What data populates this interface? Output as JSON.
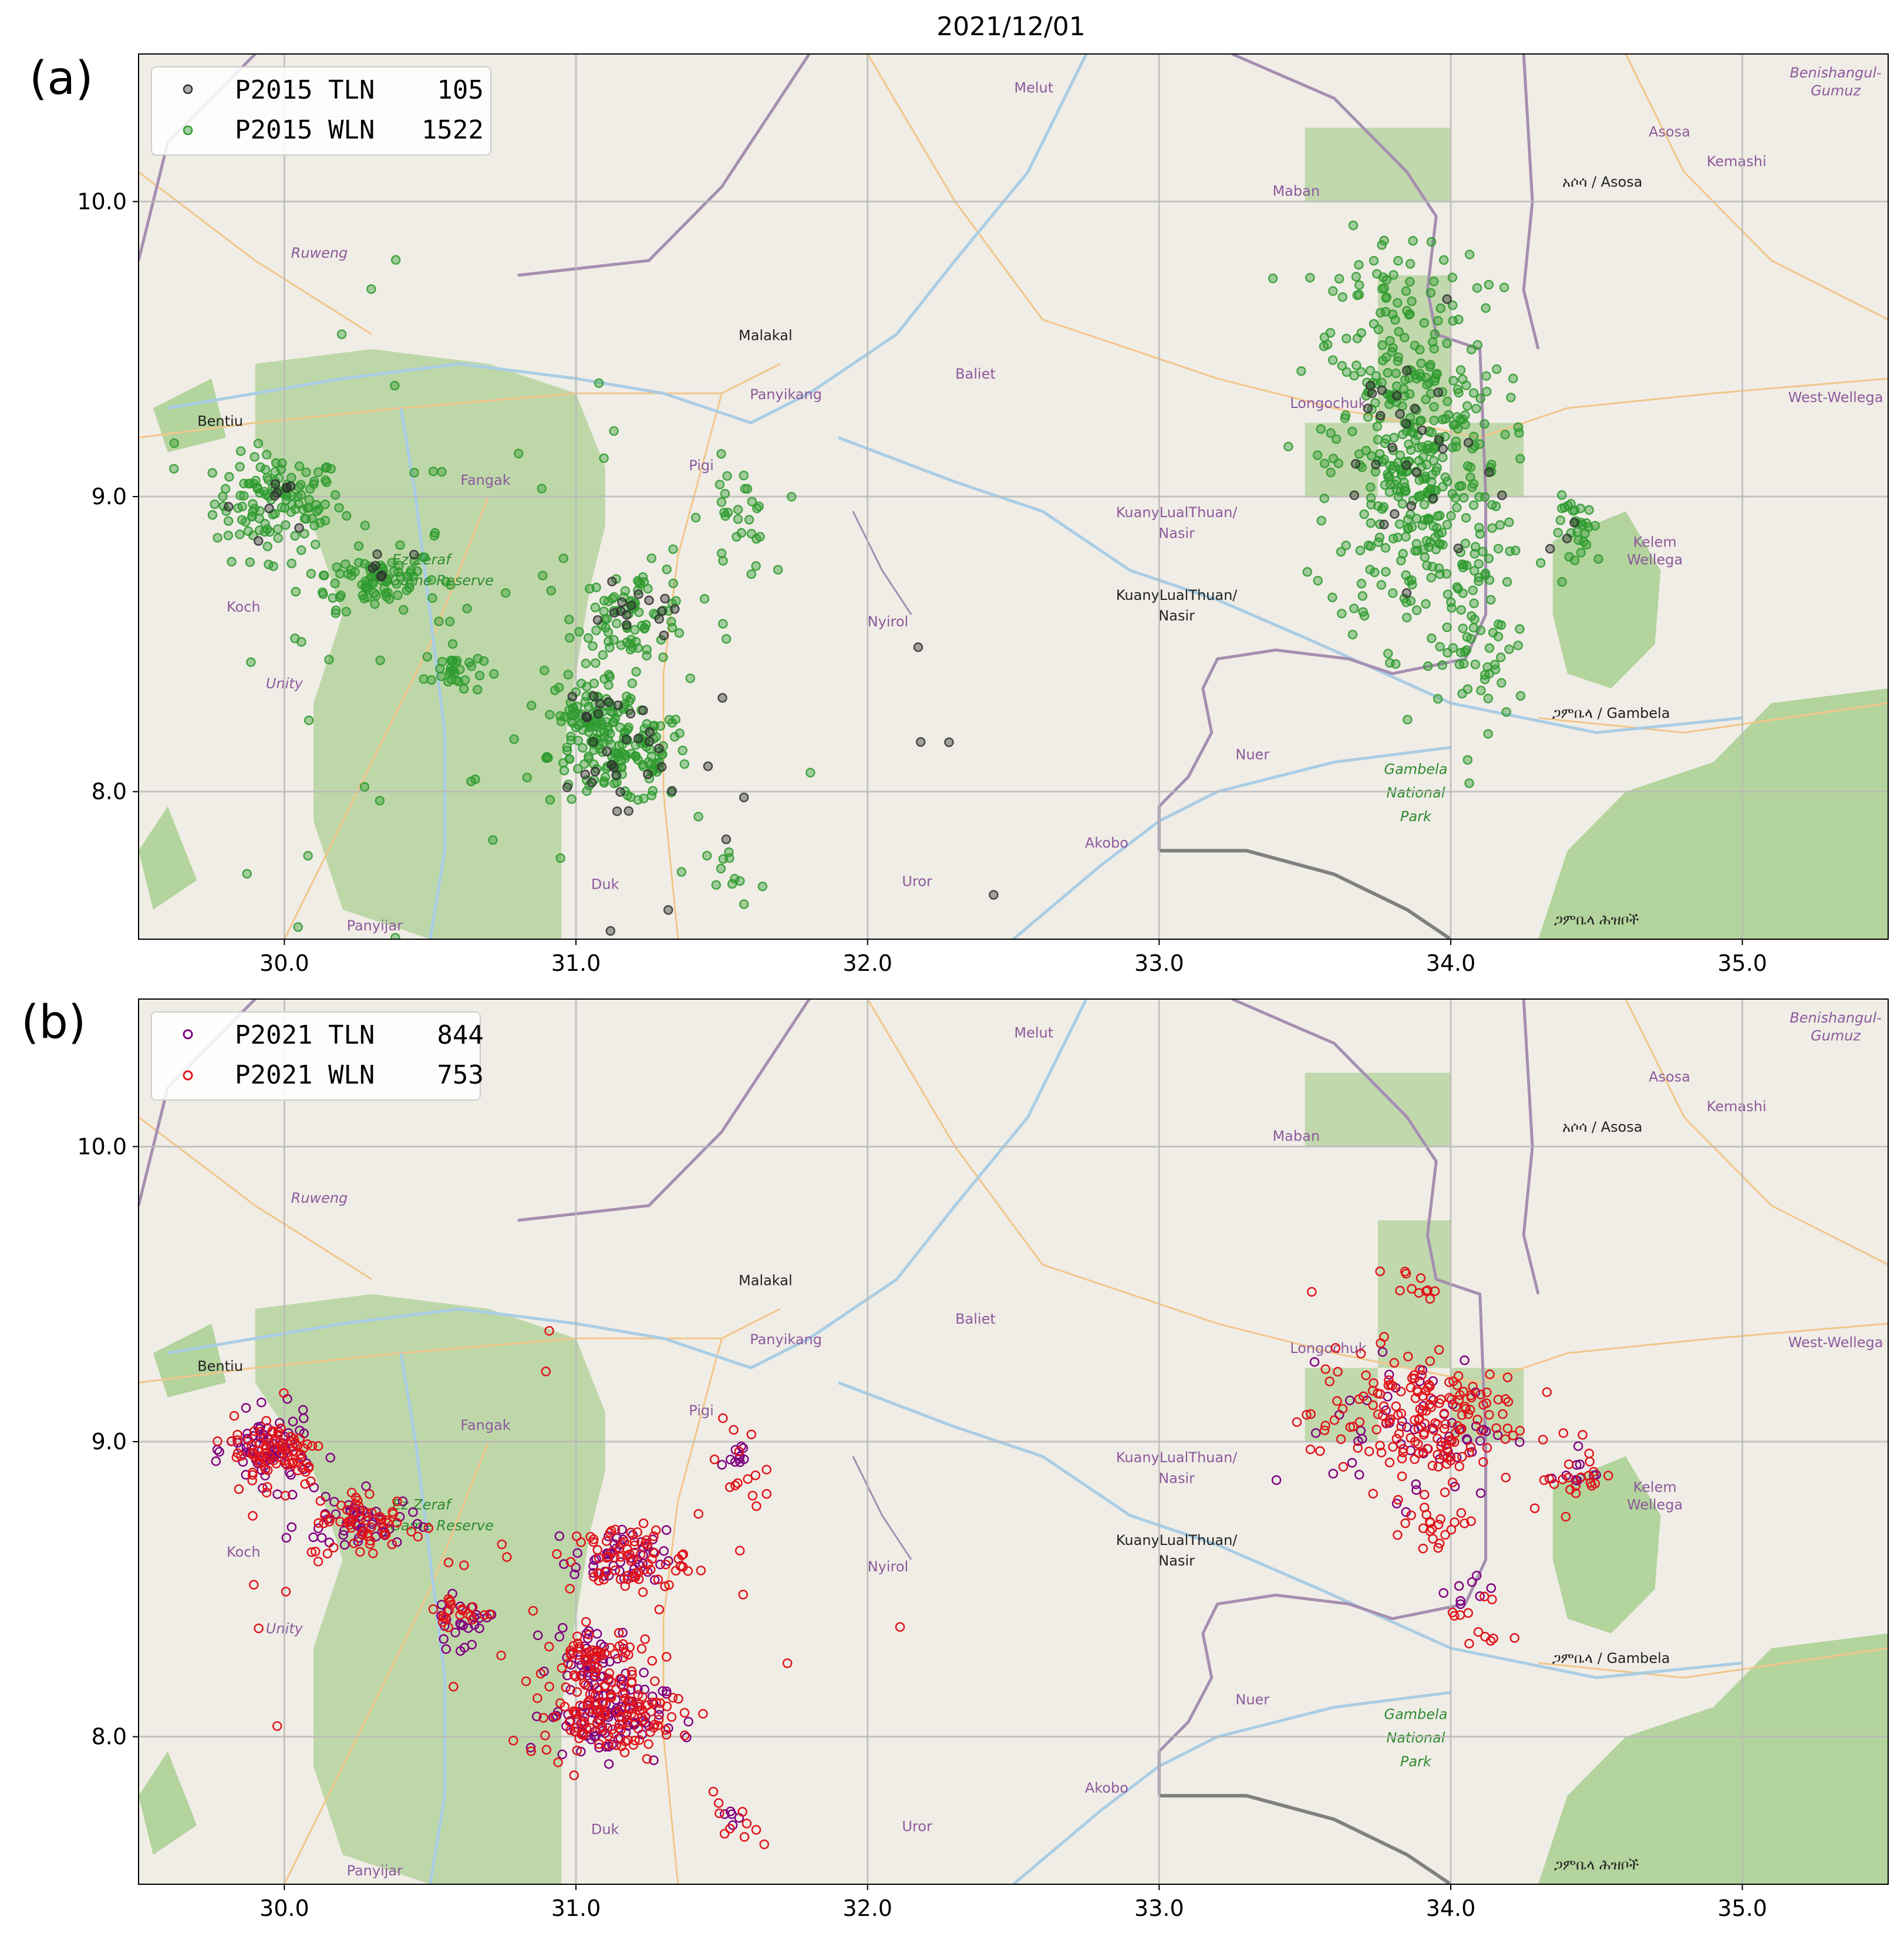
{
  "figure": {
    "title": "2021/12/01"
  },
  "colors": {
    "map_bg": "#f0ede6",
    "park_green": "#b5d29e",
    "park_green_dark": "#9cc28a",
    "forest_green": "#a8cf8f",
    "grid": "#b8b8b8",
    "border_purple": "#a58fb0",
    "border_grey": "#808080",
    "river": "#a9cde4",
    "road": "#f3c58a",
    "place_purple": "#8d5a9c",
    "place_black": "#222222",
    "park_text": "#2f8a2f"
  },
  "map_labels": [
    {
      "name": "Melut",
      "lon": 32.57,
      "lat": 10.37,
      "style": "purple"
    },
    {
      "name": "Ruweng",
      "lon": 30.12,
      "lat": 9.81,
      "style": "purple-italic"
    },
    {
      "name": "Malakal",
      "lon": 31.65,
      "lat": 9.53,
      "style": "black"
    },
    {
      "name": "Baliet",
      "lon": 32.37,
      "lat": 9.4,
      "style": "purple"
    },
    {
      "name": "Panyikang",
      "lon": 31.72,
      "lat": 9.33,
      "style": "purple"
    },
    {
      "name": "Bentiu",
      "lon": 29.78,
      "lat": 9.24,
      "style": "black"
    },
    {
      "name": "Fangak",
      "lon": 30.69,
      "lat": 9.04,
      "style": "purple"
    },
    {
      "name": "Pigi",
      "lon": 31.43,
      "lat": 9.09,
      "style": "purple"
    },
    {
      "name": "Ez Zeraf",
      "lon": 30.47,
      "lat": 8.77,
      "style": "green-italic"
    },
    {
      "name": "Game Reserve",
      "lon": 30.54,
      "lat": 8.7,
      "style": "green-italic"
    },
    {
      "name": "Koch",
      "lon": 29.86,
      "lat": 8.61,
      "style": "purple"
    },
    {
      "name": "Unity",
      "lon": 30.0,
      "lat": 8.35,
      "style": "purple-italic"
    },
    {
      "name": "Nyirol",
      "lon": 32.07,
      "lat": 8.56,
      "style": "purple"
    },
    {
      "name": "KuanyLualThuan/",
      "lon": 33.06,
      "lat": 8.93,
      "style": "purple"
    },
    {
      "name": "Nasir",
      "lon": 33.06,
      "lat": 8.86,
      "style": "purple"
    },
    {
      "name": "KuanyLualThuan/",
      "lon": 33.06,
      "lat": 8.65,
      "style": "black"
    },
    {
      "name": "Nasir",
      "lon": 33.06,
      "lat": 8.58,
      "style": "black"
    },
    {
      "name": "Akobo",
      "lon": 32.82,
      "lat": 7.81,
      "style": "purple"
    },
    {
      "name": "Uror",
      "lon": 32.17,
      "lat": 7.68,
      "style": "purple"
    },
    {
      "name": "Duk",
      "lon": 31.1,
      "lat": 7.67,
      "style": "purple"
    },
    {
      "name": "Panyijar",
      "lon": 30.31,
      "lat": 7.53,
      "style": "purple"
    },
    {
      "name": "Maban",
      "lon": 33.47,
      "lat": 10.02,
      "style": "purple"
    },
    {
      "name": "Longochuk",
      "lon": 33.58,
      "lat": 9.3,
      "style": "purple"
    },
    {
      "name": "Asosa",
      "lon": 34.75,
      "lat": 10.22,
      "style": "purple"
    },
    {
      "name": "Kemashi",
      "lon": 34.98,
      "lat": 10.12,
      "style": "purple"
    },
    {
      "name": "Benishangul-",
      "lon": 35.32,
      "lat": 10.42,
      "style": "purple-italic"
    },
    {
      "name": "Gumuz",
      "lon": 35.32,
      "lat": 10.36,
      "style": "purple-italic"
    },
    {
      "name": "አሶሳ / Asosa",
      "lon": 34.52,
      "lat": 10.05,
      "style": "black"
    },
    {
      "name": "West-Wellega",
      "lon": 35.32,
      "lat": 9.32,
      "style": "purple"
    },
    {
      "name": "Kelem",
      "lon": 34.7,
      "lat": 8.83,
      "style": "purple"
    },
    {
      "name": "Wellega",
      "lon": 34.7,
      "lat": 8.77,
      "style": "purple"
    },
    {
      "name": "ጋምቤላ / Gambela",
      "lon": 34.55,
      "lat": 8.25,
      "style": "black"
    },
    {
      "name": "Nuer",
      "lon": 33.32,
      "lat": 8.11,
      "style": "purple"
    },
    {
      "name": "Gambela",
      "lon": 33.88,
      "lat": 8.06,
      "style": "green-italic"
    },
    {
      "name": "National",
      "lon": 33.88,
      "lat": 7.98,
      "style": "green-italic"
    },
    {
      "name": "Park",
      "lon": 33.88,
      "lat": 7.9,
      "style": "green-italic"
    },
    {
      "name": "ጋምቤላ ሕዝቦች",
      "lon": 34.5,
      "lat": 7.55,
      "style": "black"
    }
  ],
  "panels": [
    {
      "label": "(a)",
      "legend": [
        {
          "text": "P2015 TLN    105",
          "color": "#4d4d4d"
        },
        {
          "text": "P2015 WLN   1522",
          "color": "#2e9a2e"
        }
      ]
    },
    {
      "label": "(b)",
      "legend": [
        {
          "text": "P2021 TLN    844",
          "color": "#800080"
        },
        {
          "text": "P2021 WLN    753",
          "color": "#e0141b"
        }
      ]
    }
  ],
  "chart_data": [
    {
      "type": "scatter",
      "panel": "(a)",
      "title": "2021/12/01",
      "xlim": [
        29.5,
        35.5
      ],
      "ylim": [
        7.5,
        10.5
      ],
      "xticks": [
        "30.0",
        "31.0",
        "32.0",
        "33.0",
        "34.0",
        "35.0"
      ],
      "yticks": [
        "8.0",
        "9.0",
        "10.0"
      ],
      "grid": true,
      "legend_position": "top-left",
      "series": [
        {
          "name": "P2015 TLN",
          "count": 105,
          "color": "#303030",
          "clusters": [
            {
              "lon": 30.0,
              "lat": 8.98,
              "spread_lon": 0.08,
              "spread_lat": 0.06,
              "n": 10
            },
            {
              "lon": 30.35,
              "lat": 8.75,
              "spread_lon": 0.06,
              "spread_lat": 0.04,
              "n": 6
            },
            {
              "lon": 31.05,
              "lat": 8.28,
              "spread_lon": 0.05,
              "spread_lat": 0.05,
              "n": 10
            },
            {
              "lon": 31.15,
              "lat": 8.1,
              "spread_lon": 0.09,
              "spread_lat": 0.07,
              "n": 18
            },
            {
              "lon": 31.2,
              "lat": 8.6,
              "spread_lon": 0.07,
              "spread_lat": 0.05,
              "n": 14
            },
            {
              "lon": 33.85,
              "lat": 9.15,
              "spread_lon": 0.12,
              "spread_lat": 0.2,
              "n": 30
            },
            {
              "lon": 34.4,
              "lat": 8.88,
              "spread_lon": 0.05,
              "spread_lat": 0.04,
              "n": 3
            },
            {
              "lon": 31.6,
              "lat": 8.0,
              "spread_lon": 0.5,
              "spread_lat": 0.5,
              "n": 14
            }
          ]
        },
        {
          "name": "P2015 WLN",
          "count": 1522,
          "color": "#2e9a2e",
          "clusters": [
            {
              "lon": 29.98,
              "lat": 8.98,
              "spread_lon": 0.11,
              "spread_lat": 0.08,
              "n": 120
            },
            {
              "lon": 30.3,
              "lat": 8.72,
              "spread_lon": 0.12,
              "spread_lat": 0.05,
              "n": 80
            },
            {
              "lon": 30.58,
              "lat": 8.41,
              "spread_lon": 0.05,
              "spread_lat": 0.04,
              "n": 30
            },
            {
              "lon": 31.05,
              "lat": 8.28,
              "spread_lon": 0.07,
              "spread_lat": 0.05,
              "n": 60
            },
            {
              "lon": 31.15,
              "lat": 8.12,
              "spread_lon": 0.12,
              "spread_lat": 0.08,
              "n": 150
            },
            {
              "lon": 31.2,
              "lat": 8.6,
              "spread_lon": 0.1,
              "spread_lat": 0.08,
              "n": 80
            },
            {
              "lon": 31.55,
              "lat": 8.92,
              "spread_lon": 0.06,
              "spread_lat": 0.1,
              "n": 30
            },
            {
              "lon": 33.88,
              "lat": 9.1,
              "spread_lon": 0.15,
              "spread_lat": 0.3,
              "n": 400
            },
            {
              "lon": 33.75,
              "lat": 9.7,
              "spread_lon": 0.12,
              "spread_lat": 0.1,
              "n": 40
            },
            {
              "lon": 34.1,
              "lat": 8.5,
              "spread_lon": 0.08,
              "spread_lat": 0.15,
              "n": 50
            },
            {
              "lon": 34.45,
              "lat": 8.88,
              "spread_lon": 0.05,
              "spread_lat": 0.06,
              "n": 30
            },
            {
              "lon": 31.55,
              "lat": 7.72,
              "spread_lon": 0.05,
              "spread_lat": 0.05,
              "n": 12
            },
            {
              "lon": 30.5,
              "lat": 8.6,
              "spread_lon": 0.5,
              "spread_lat": 0.5,
              "n": 60
            }
          ]
        }
      ]
    },
    {
      "type": "scatter",
      "panel": "(b)",
      "xlim": [
        29.5,
        35.5
      ],
      "ylim": [
        7.5,
        10.5
      ],
      "xticks": [
        "30.0",
        "31.0",
        "32.0",
        "33.0",
        "34.0",
        "35.0"
      ],
      "yticks": [
        "8.0",
        "9.0",
        "10.0"
      ],
      "grid": true,
      "legend_position": "top-left",
      "series": [
        {
          "name": "P2021 TLN",
          "count": 844,
          "color": "#800080",
          "clusters": [
            {
              "lon": 29.95,
              "lat": 8.97,
              "spread_lon": 0.07,
              "spread_lat": 0.06,
              "n": 80
            },
            {
              "lon": 30.25,
              "lat": 8.72,
              "spread_lon": 0.1,
              "spread_lat": 0.05,
              "n": 50
            },
            {
              "lon": 30.6,
              "lat": 8.38,
              "spread_lon": 0.05,
              "spread_lat": 0.04,
              "n": 25
            },
            {
              "lon": 31.05,
              "lat": 8.28,
              "spread_lon": 0.06,
              "spread_lat": 0.05,
              "n": 40
            },
            {
              "lon": 31.1,
              "lat": 8.07,
              "spread_lon": 0.1,
              "spread_lat": 0.07,
              "n": 100
            },
            {
              "lon": 31.15,
              "lat": 8.6,
              "spread_lon": 0.08,
              "spread_lat": 0.05,
              "n": 50
            },
            {
              "lon": 31.55,
              "lat": 8.95,
              "spread_lon": 0.03,
              "spread_lat": 0.02,
              "n": 10
            },
            {
              "lon": 33.9,
              "lat": 9.05,
              "spread_lon": 0.15,
              "spread_lat": 0.12,
              "n": 60
            },
            {
              "lon": 34.05,
              "lat": 8.5,
              "spread_lon": 0.05,
              "spread_lat": 0.04,
              "n": 8
            },
            {
              "lon": 34.42,
              "lat": 8.9,
              "spread_lon": 0.04,
              "spread_lat": 0.04,
              "n": 10
            },
            {
              "lon": 31.53,
              "lat": 7.72,
              "spread_lon": 0.02,
              "spread_lat": 0.02,
              "n": 5
            }
          ]
        },
        {
          "name": "P2021 WLN",
          "count": 753,
          "color": "#e0141b",
          "clusters": [
            {
              "lon": 29.98,
              "lat": 8.97,
              "spread_lon": 0.08,
              "spread_lat": 0.06,
              "n": 80
            },
            {
              "lon": 30.28,
              "lat": 8.72,
              "spread_lon": 0.1,
              "spread_lat": 0.06,
              "n": 60
            },
            {
              "lon": 30.6,
              "lat": 8.42,
              "spread_lon": 0.06,
              "spread_lat": 0.03,
              "n": 20
            },
            {
              "lon": 31.07,
              "lat": 8.29,
              "spread_lon": 0.07,
              "spread_lat": 0.04,
              "n": 50
            },
            {
              "lon": 31.12,
              "lat": 8.08,
              "spread_lon": 0.12,
              "spread_lat": 0.07,
              "n": 130
            },
            {
              "lon": 31.18,
              "lat": 8.6,
              "spread_lon": 0.1,
              "spread_lat": 0.06,
              "n": 70
            },
            {
              "lon": 31.55,
              "lat": 8.9,
              "spread_lon": 0.05,
              "spread_lat": 0.12,
              "n": 15
            },
            {
              "lon": 33.88,
              "lat": 9.08,
              "spread_lon": 0.18,
              "spread_lat": 0.12,
              "n": 180
            },
            {
              "lon": 33.85,
              "lat": 9.55,
              "spread_lon": 0.05,
              "spread_lat": 0.04,
              "n": 10
            },
            {
              "lon": 33.95,
              "lat": 8.68,
              "spread_lon": 0.08,
              "spread_lat": 0.04,
              "n": 20
            },
            {
              "lon": 34.1,
              "lat": 8.4,
              "spread_lon": 0.05,
              "spread_lat": 0.08,
              "n": 12
            },
            {
              "lon": 34.42,
              "lat": 8.88,
              "spread_lon": 0.05,
              "spread_lat": 0.06,
              "n": 20
            },
            {
              "lon": 31.55,
              "lat": 7.72,
              "spread_lon": 0.04,
              "spread_lat": 0.05,
              "n": 10
            },
            {
              "lon": 30.8,
              "lat": 8.6,
              "spread_lon": 0.6,
              "spread_lat": 0.5,
              "n": 25
            }
          ]
        }
      ]
    }
  ]
}
